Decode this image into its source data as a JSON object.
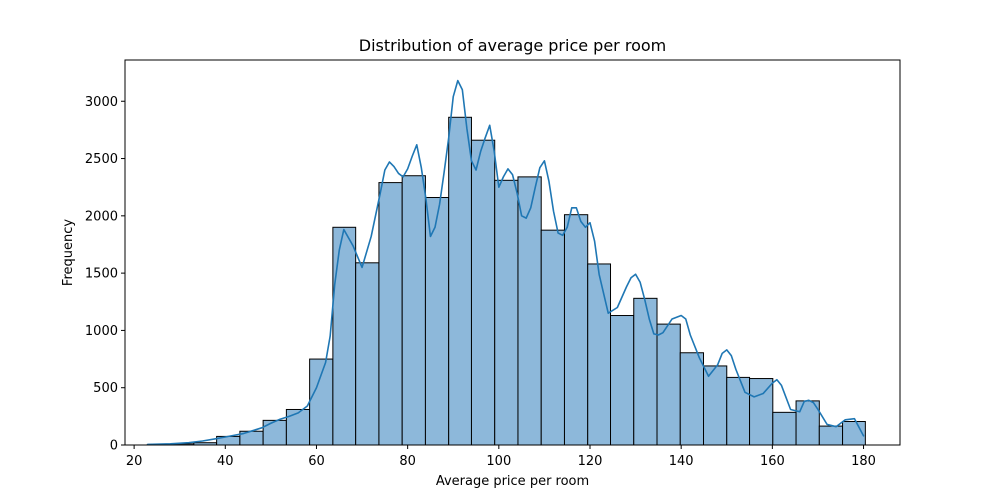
{
  "chart_data": {
    "type": "bar",
    "subtype": "histogram_with_kde",
    "title": "Distribution of average price per room",
    "xlabel": "Average price per room",
    "ylabel": "Frequency",
    "xlim": [
      18,
      188
    ],
    "ylim": [
      0,
      3360
    ],
    "x_ticks": [
      20,
      40,
      60,
      80,
      100,
      120,
      140,
      160,
      180
    ],
    "y_ticks": [
      0,
      500,
      1000,
      1500,
      2000,
      2500,
      3000
    ],
    "bin_edges": [
      22.9,
      28.0,
      33.1,
      38.1,
      43.2,
      48.3,
      53.4,
      58.5,
      63.6,
      68.6,
      73.7,
      78.8,
      83.9,
      89.0,
      94.0,
      99.1,
      104.2,
      109.3,
      114.4,
      119.5,
      124.5,
      129.6,
      134.7,
      139.8,
      144.9,
      150.0,
      155.0,
      160.1,
      165.2,
      170.3,
      175.4,
      180.4
    ],
    "values": [
      5,
      10,
      20,
      75,
      120,
      215,
      310,
      750,
      1900,
      1590,
      2290,
      2350,
      2160,
      2860,
      2660,
      2310,
      2340,
      1875,
      2010,
      1580,
      1130,
      1280,
      1055,
      805,
      690,
      590,
      580,
      285,
      385,
      165,
      205
    ],
    "kde": {
      "x": [
        23,
        28,
        32,
        35,
        38,
        40,
        42,
        44,
        46,
        48,
        50,
        52,
        54,
        56,
        58,
        60,
        62,
        63,
        64,
        65,
        66,
        68,
        70,
        72,
        74,
        75,
        76,
        77,
        78,
        79,
        80,
        81,
        82,
        83,
        84,
        85,
        86,
        87,
        88,
        89,
        90,
        91,
        92,
        93,
        94,
        95,
        96,
        97,
        98,
        99,
        100,
        101,
        102,
        103,
        104,
        105,
        106,
        107,
        108,
        109,
        110,
        111,
        112,
        113,
        114,
        115,
        116,
        117,
        118,
        119,
        120,
        121,
        122,
        124,
        126,
        128,
        129,
        130,
        131,
        132,
        133,
        134,
        135,
        136,
        138,
        140,
        141,
        142,
        144,
        146,
        148,
        149,
        150,
        151,
        152,
        154,
        156,
        158,
        160,
        161,
        162,
        164,
        166,
        167,
        168,
        169,
        170,
        172,
        174,
        176,
        178,
        180
      ],
      "y": [
        5,
        10,
        20,
        35,
        55,
        70,
        85,
        100,
        125,
        150,
        190,
        225,
        250,
        280,
        340,
        500,
        720,
        950,
        1400,
        1700,
        1880,
        1740,
        1550,
        1820,
        2200,
        2400,
        2470,
        2430,
        2370,
        2340,
        2410,
        2520,
        2620,
        2420,
        2150,
        1820,
        1900,
        2100,
        2380,
        2680,
        3040,
        3180,
        3100,
        2760,
        2480,
        2400,
        2560,
        2680,
        2790,
        2560,
        2250,
        2340,
        2410,
        2360,
        2200,
        2000,
        1980,
        2070,
        2250,
        2420,
        2480,
        2300,
        2040,
        1850,
        1830,
        1900,
        2070,
        2070,
        1950,
        1900,
        1940,
        1780,
        1490,
        1150,
        1200,
        1380,
        1460,
        1490,
        1420,
        1270,
        1100,
        970,
        960,
        980,
        1100,
        1130,
        1100,
        960,
        760,
        600,
        700,
        800,
        830,
        780,
        660,
        460,
        420,
        450,
        540,
        570,
        520,
        310,
        290,
        380,
        390,
        370,
        310,
        180,
        160,
        220,
        230,
        80
      ]
    }
  }
}
